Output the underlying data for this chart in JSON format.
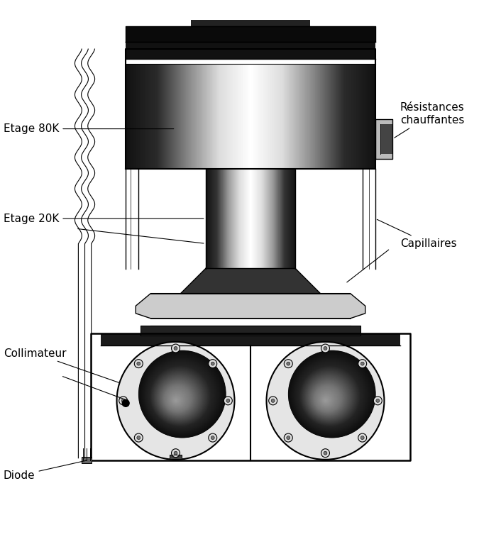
{
  "title": "",
  "background_color": "#ffffff",
  "labels": {
    "etage80k": "Etage 80K",
    "resistances": "Résistances\nchauffantes",
    "etage20k": "Etage 20K",
    "capillaires": "Capillaires",
    "collimateur": "Collimateur",
    "diode": "Diode"
  },
  "figsize": [
    7.06,
    7.57
  ],
  "dpi": 100
}
